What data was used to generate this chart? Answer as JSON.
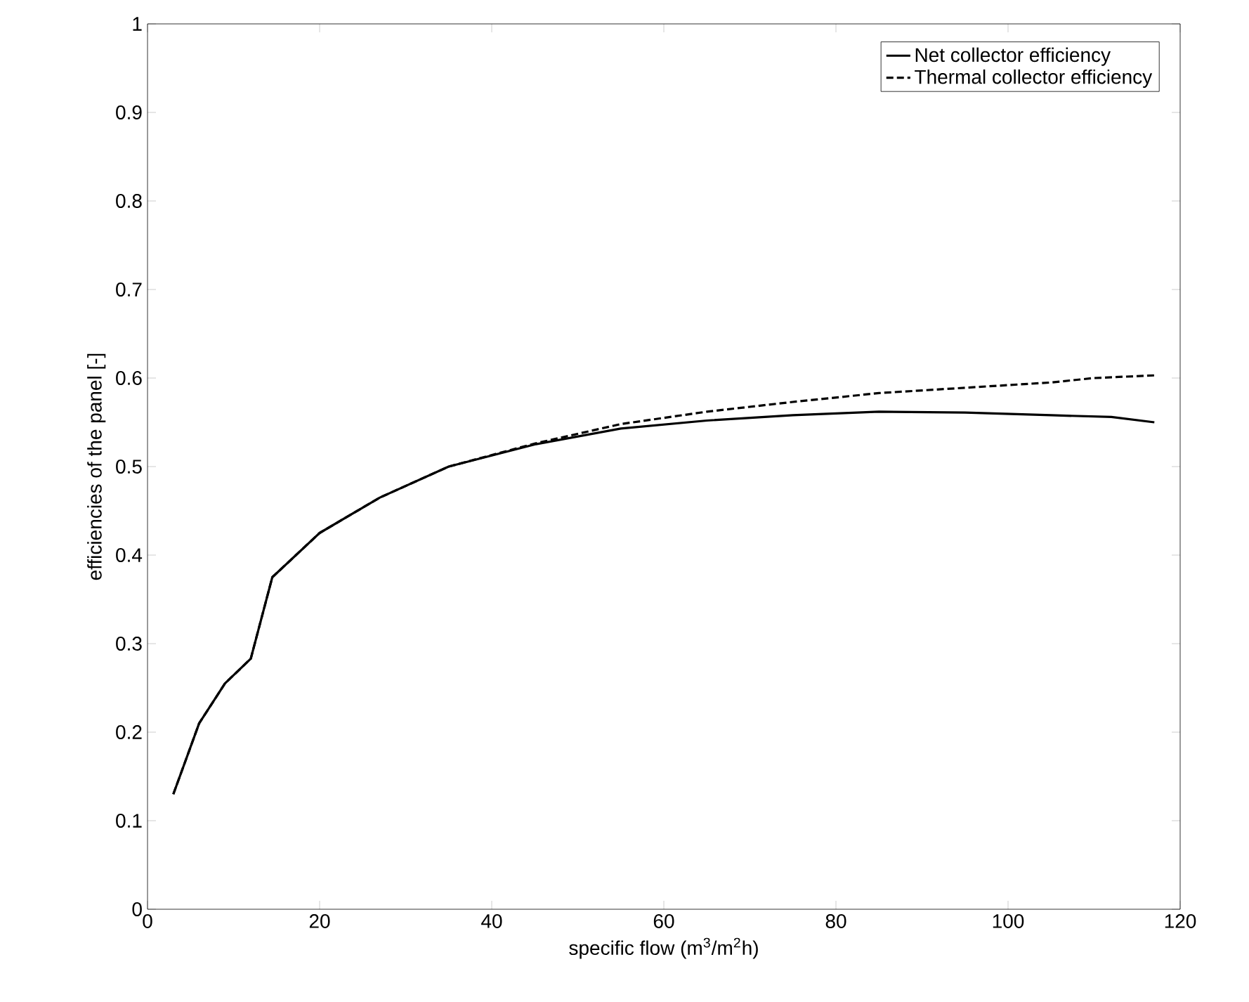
{
  "chart_data": {
    "type": "line",
    "xlabel": "specific flow (m$^{3}$/m$^{2}$h)",
    "ylabel": "efficiencies of the panel [-]",
    "xlim": [
      0,
      120
    ],
    "xticks": [
      0,
      20,
      40,
      60,
      80,
      100,
      120
    ],
    "ylim": [
      0,
      1
    ],
    "yticks": [
      0,
      0.1,
      0.2,
      0.3,
      0.4,
      0.5,
      0.6,
      0.7,
      0.8,
      0.9,
      1
    ],
    "legend": "top right",
    "grid": false,
    "series": [
      {
        "name": "Net collector efficiency",
        "color": "#000000",
        "line_style": "solid",
        "x": [
          3,
          6,
          9,
          12,
          14.5,
          20,
          27,
          35,
          45,
          55,
          65,
          75,
          85,
          95,
          105,
          112,
          117
        ],
        "values": [
          0.13,
          0.21,
          0.255,
          0.283,
          0.375,
          0.425,
          0.465,
          0.5,
          0.525,
          0.543,
          0.552,
          0.558,
          0.562,
          0.561,
          0.558,
          0.556,
          0.55
        ]
      },
      {
        "name": "Thermal collector efficiency",
        "color": "#000000",
        "line_style": "dashed",
        "x": [
          3,
          6,
          9,
          12,
          14.5,
          20,
          27,
          35,
          45,
          55,
          65,
          75,
          85,
          95,
          105,
          110,
          117
        ],
        "values": [
          0.13,
          0.21,
          0.255,
          0.283,
          0.375,
          0.425,
          0.465,
          0.5,
          0.526,
          0.548,
          0.562,
          0.573,
          0.583,
          0.589,
          0.595,
          0.6,
          0.603
        ]
      }
    ]
  }
}
